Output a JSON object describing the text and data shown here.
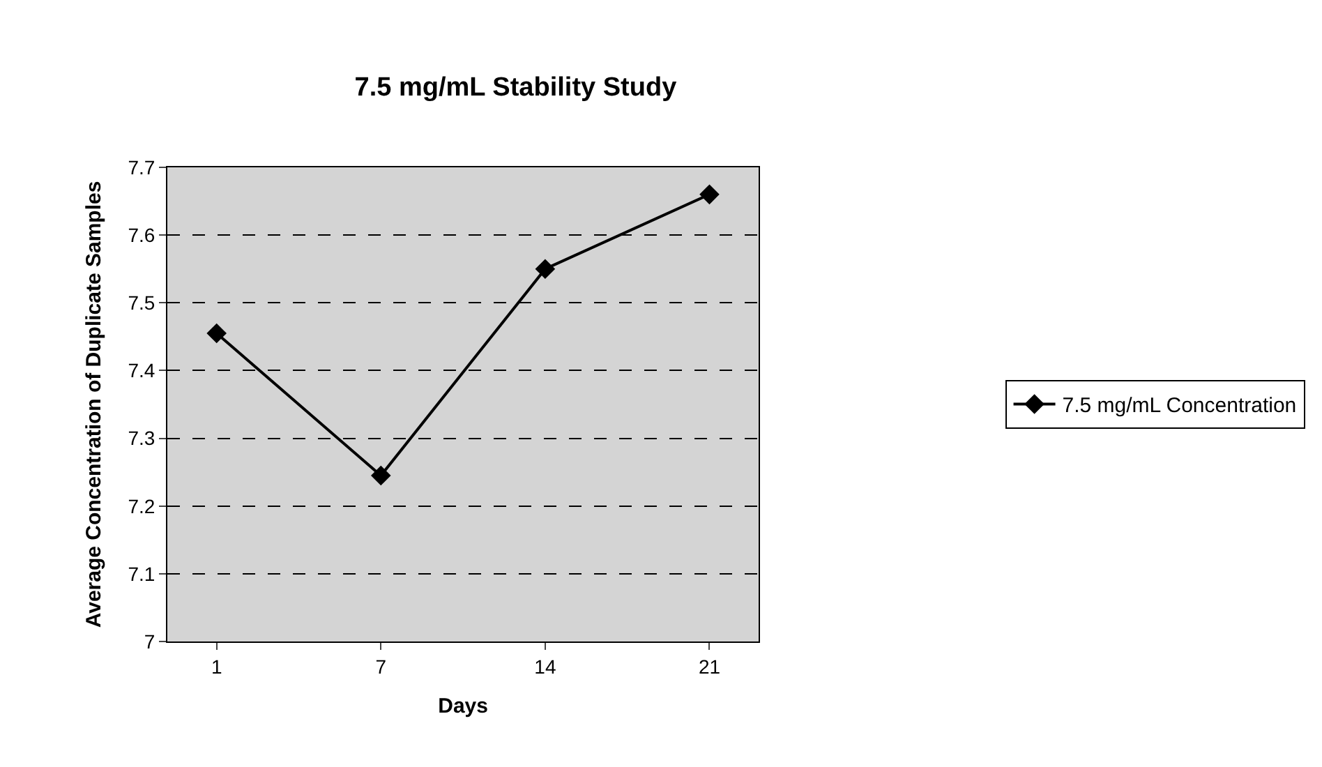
{
  "chart_data": {
    "type": "line",
    "title": "7.5 mg/mL Stability Study",
    "xlabel": "Days",
    "ylabel": "Average Concentration of Duplicate Samples",
    "categories": [
      "1",
      "7",
      "14",
      "21"
    ],
    "series": [
      {
        "name": "7.5 mg/mL Concentration",
        "color": "#000000",
        "values": [
          7.455,
          7.245,
          7.55,
          7.66
        ]
      }
    ],
    "ylim": [
      7,
      7.7
    ],
    "yticks": [
      7,
      7.1,
      7.2,
      7.3,
      7.4,
      7.5,
      7.6,
      7.7
    ],
    "grid": "y",
    "legend": "right",
    "marker": "diamond",
    "line_style": "solid"
  }
}
